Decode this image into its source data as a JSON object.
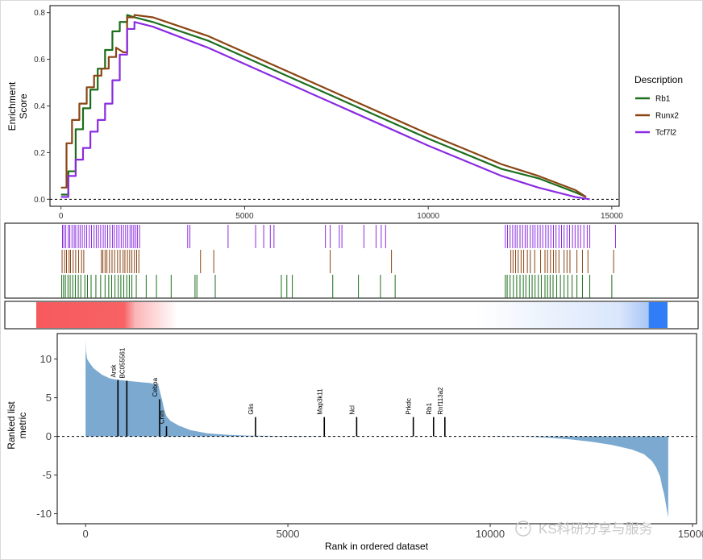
{
  "chart_data": [
    {
      "panel": "enrichment",
      "type": "line",
      "ylabel": [
        "Enrichment",
        "Score"
      ],
      "xlabel": "",
      "xlim": [
        -300,
        15200
      ],
      "ylim": [
        -0.03,
        0.83
      ],
      "x_ticks": [
        0,
        5000,
        10000,
        15000
      ],
      "y_ticks": [
        0.0,
        0.2,
        0.4,
        0.6,
        0.8
      ],
      "y_tick_labels": [
        "0.0",
        "0.2",
        "0.4",
        "0.6",
        "0.8"
      ],
      "zero_line": true,
      "legend": {
        "title": "Description",
        "position": "right"
      },
      "series": [
        {
          "name": "Rb1",
          "color": "#1b6e1b",
          "x": [
            0,
            200,
            400,
            600,
            800,
            1000,
            1200,
            1400,
            1600,
            1800,
            2000,
            2500,
            4000,
            6000,
            8000,
            10000,
            12000,
            13000,
            14000,
            14300
          ],
          "y": [
            0.02,
            0.12,
            0.3,
            0.39,
            0.47,
            0.56,
            0.64,
            0.72,
            0.76,
            0.79,
            0.78,
            0.76,
            0.68,
            0.54,
            0.4,
            0.26,
            0.13,
            0.09,
            0.03,
            0.01
          ]
        },
        {
          "name": "Runx2",
          "color": "#8b4513",
          "x": [
            0,
            150,
            300,
            500,
            700,
            900,
            1100,
            1300,
            1500,
            1700,
            1800,
            2000,
            2500,
            4000,
            6000,
            8000,
            10000,
            12000,
            13000,
            14000,
            14300
          ],
          "y": [
            0.05,
            0.24,
            0.34,
            0.41,
            0.48,
            0.53,
            0.56,
            0.61,
            0.65,
            0.63,
            0.78,
            0.79,
            0.78,
            0.7,
            0.56,
            0.42,
            0.28,
            0.15,
            0.1,
            0.04,
            0.01
          ]
        },
        {
          "name": "Tcf7l2",
          "color": "#8a2be2",
          "x": [
            0,
            200,
            400,
            600,
            800,
            1000,
            1200,
            1400,
            1600,
            1800,
            2000,
            2500,
            4000,
            6000,
            8000,
            10000,
            12000,
            13000,
            14000,
            14400
          ],
          "y": [
            0.01,
            0.1,
            0.17,
            0.22,
            0.29,
            0.34,
            0.41,
            0.51,
            0.62,
            0.73,
            0.76,
            0.74,
            0.65,
            0.51,
            0.37,
            0.23,
            0.1,
            0.05,
            0.01,
            0.0
          ]
        }
      ]
    },
    {
      "panel": "hit-marks",
      "type": "scatter",
      "xlim": [
        -300,
        15200
      ],
      "rows": [
        {
          "name": "Tcf7l2",
          "color": "#8a2be2",
          "x": [
            40,
            80,
            130,
            200,
            240,
            300,
            360,
            400,
            470,
            520,
            580,
            640,
            700,
            770,
            830,
            900,
            960,
            1020,
            1080,
            1150,
            1200,
            1270,
            1330,
            1400,
            1450,
            1520,
            1580,
            1640,
            1700,
            1760,
            1820,
            1880,
            1930,
            1980,
            2030,
            2080,
            2140,
            3450,
            3510,
            4550,
            5300,
            5520,
            5700,
            5800,
            7200,
            7330,
            7580,
            7650,
            8250,
            8580,
            8720,
            8840,
            12100,
            12160,
            12230,
            12300,
            12370,
            12420,
            12500,
            12570,
            12640,
            12700,
            12780,
            12850,
            12910,
            12980,
            13050,
            13120,
            13200,
            13270,
            13340,
            13410,
            13480,
            13560,
            13630,
            13700,
            13780,
            13850,
            13930,
            14000,
            14080,
            14150,
            14240,
            14330,
            14400,
            15100
          ]
        },
        {
          "name": "Runx2",
          "color": "#8b4513",
          "x": [
            30,
            100,
            150,
            220,
            260,
            330,
            400,
            480,
            560,
            620,
            1100,
            1140,
            1200,
            1250,
            1320,
            1390,
            1460,
            1540,
            1610,
            1690,
            1740,
            1810,
            1870,
            1930,
            2000,
            2060,
            2120,
            3800,
            4160,
            7330,
            9000,
            12250,
            12310,
            12380,
            12450,
            12530,
            12600,
            12700,
            12780,
            12900,
            13060,
            13180,
            13250,
            13330,
            13410,
            13480,
            13560,
            13700,
            13780,
            13860,
            14050,
            14200,
            14350,
            15050
          ]
        },
        {
          "name": "Rb1",
          "color": "#1b6e1b",
          "x": [
            20,
            70,
            120,
            190,
            250,
            320,
            390,
            470,
            540,
            650,
            720,
            820,
            950,
            1080,
            1200,
            1300,
            1380,
            1470,
            1560,
            1630,
            1710,
            1790,
            1860,
            1930,
            2050,
            2320,
            2600,
            3000,
            3650,
            3700,
            4200,
            6000,
            6150,
            6300,
            7400,
            8100,
            8700,
            9100,
            12100,
            12150,
            12230,
            12320,
            12410,
            12500,
            12590,
            12660,
            12750,
            12830,
            12910,
            13000,
            13080,
            13180,
            13250,
            13320,
            13400,
            13500,
            13600,
            13700,
            13800,
            13920,
            14050,
            14200,
            14400,
            15000
          ]
        }
      ]
    },
    {
      "panel": "rank-gradient",
      "type": "heatmap",
      "xlim": [
        -300,
        15200
      ],
      "red_x_range": [
        0,
        2300
      ],
      "blue_x_range": [
        12600,
        14700
      ],
      "colors": {
        "high": "#f76265",
        "mid": "#ffffff",
        "low": "#2f7ef7"
      }
    },
    {
      "panel": "ranked-metric",
      "type": "area",
      "xlabel": "Rank in ordered dataset",
      "ylabel": [
        "Ranked list",
        "metric"
      ],
      "xlim": [
        -700,
        15100
      ],
      "ylim": [
        -11.3,
        13.3
      ],
      "x_ticks": [
        0,
        5000,
        10000,
        15000
      ],
      "x_tick_labels": [
        "0",
        "5000",
        "10000",
        "15000"
      ],
      "y_ticks": [
        -10,
        -5,
        0,
        5,
        10
      ],
      "y_tick_labels": [
        "-10",
        "-5",
        "0",
        "5",
        "10"
      ],
      "fill_color": "#7ba9d0",
      "zero_line": true,
      "curve": {
        "x": [
          0,
          10,
          40,
          100,
          200,
          400,
          600,
          800,
          1000,
          1200,
          1400,
          1600,
          1800,
          1900,
          1950,
          2000,
          2100,
          2300,
          2600,
          3000,
          3500,
          4000,
          5000,
          7000,
          9000,
          11000,
          11500,
          12000,
          12500,
          13000,
          13500,
          13800,
          14000,
          14100,
          14200,
          14250,
          14300,
          14350,
          14400
        ],
        "y": [
          12.5,
          11.0,
          10.0,
          9.5,
          8.8,
          8.0,
          7.5,
          7.3,
          7.2,
          7.1,
          7.0,
          6.9,
          6.6,
          4.5,
          3.3,
          2.6,
          2.0,
          1.4,
          0.8,
          0.4,
          0.2,
          0.1,
          0.05,
          0.0,
          0.0,
          -0.05,
          -0.2,
          -0.4,
          -0.7,
          -1.1,
          -1.7,
          -2.3,
          -3.2,
          -4.0,
          -5.2,
          -6.5,
          -7.5,
          -9.0,
          -10.5
        ]
      },
      "genes": [
        {
          "label": "Arsk",
          "x": 800,
          "y": 7.3
        },
        {
          "label": "BC055561",
          "x": 1020,
          "y": 7.2
        },
        {
          "label": "Cebpa",
          "x": 1830,
          "y": 4.8
        },
        {
          "label": "Chm",
          "x": 2000,
          "y": 1.3
        },
        {
          "label": "Glis",
          "x": 4200,
          "y": 2.5
        },
        {
          "label": "Map3k11",
          "x": 5900,
          "y": 2.5
        },
        {
          "label": "Ncl",
          "x": 6700,
          "y": 2.5
        },
        {
          "label": "Prkdc",
          "x": 8100,
          "y": 2.5
        },
        {
          "label": "Rb1",
          "x": 8600,
          "y": 2.5
        },
        {
          "label": "Rnf113a2",
          "x": 8880,
          "y": 2.5
        }
      ]
    }
  ],
  "watermark": {
    "text": "KS科研分享与服务",
    "icon": "wechat-icon"
  }
}
